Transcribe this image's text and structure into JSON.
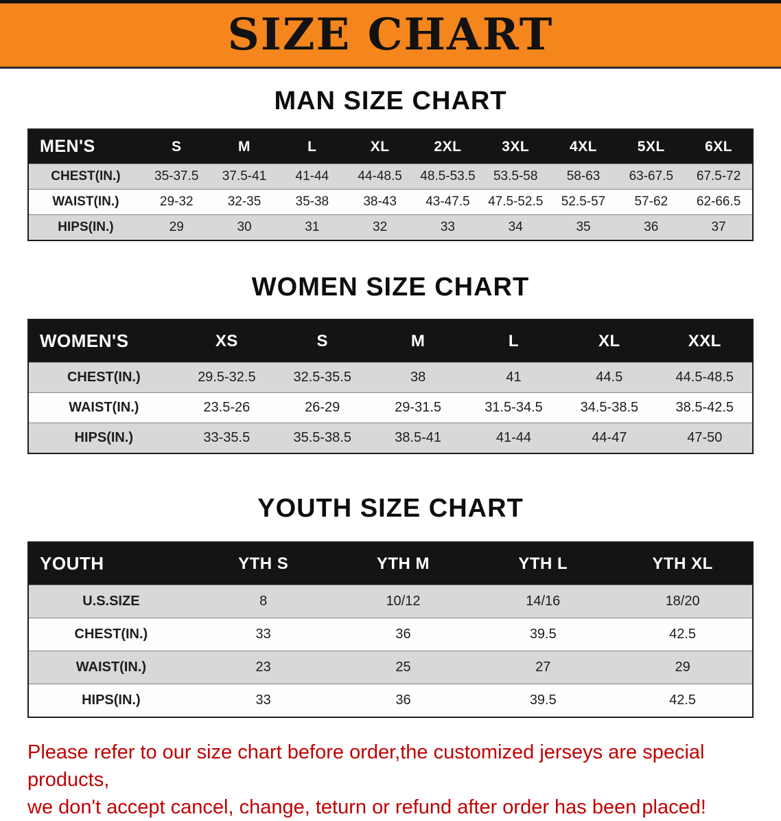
{
  "banner": {
    "title": "SIZE CHART"
  },
  "colors": {
    "banner_bg": "#f5851d",
    "table_header_bg": "#141414",
    "row_alt_gray": "#d8d8d8",
    "notice_red": "#c00202"
  },
  "sections": {
    "men": {
      "heading": "MAN SIZE CHART",
      "table": {
        "header": [
          "MEN'S",
          "S",
          "M",
          "L",
          "XL",
          "2XL",
          "3XL",
          "4XL",
          "5XL",
          "6XL"
        ],
        "rows": [
          {
            "label": "CHEST(IN.)",
            "values": [
              "35-37.5",
              "37.5-41",
              "41-44",
              "44-48.5",
              "48.5-53.5",
              "53.5-58",
              "58-63",
              "63-67.5",
              "67.5-72"
            ]
          },
          {
            "label": "WAIST(IN.)",
            "values": [
              "29-32",
              "32-35",
              "35-38",
              "38-43",
              "43-47.5",
              "47.5-52.5",
              "52.5-57",
              "57-62",
              "62-66.5"
            ]
          },
          {
            "label": "HIPS(IN.)",
            "values": [
              "29",
              "30",
              "31",
              "32",
              "33",
              "34",
              "35",
              "36",
              "37"
            ]
          }
        ]
      }
    },
    "women": {
      "heading": "WOMEN SIZE CHART",
      "table": {
        "header": [
          "WOMEN'S",
          "XS",
          "S",
          "M",
          "L",
          "XL",
          "XXL"
        ],
        "rows": [
          {
            "label": "CHEST(IN.)",
            "values": [
              "29.5-32.5",
              "32.5-35.5",
              "38",
              "41",
              "44.5",
              "44.5-48.5"
            ]
          },
          {
            "label": "WAIST(IN.)",
            "values": [
              "23.5-26",
              "26-29",
              "29-31.5",
              "31.5-34.5",
              "34.5-38.5",
              "38.5-42.5"
            ]
          },
          {
            "label": "HIPS(IN.)",
            "values": [
              "33-35.5",
              "35.5-38.5",
              "38.5-41",
              "41-44",
              "44-47",
              "47-50"
            ]
          }
        ]
      }
    },
    "youth": {
      "heading": "YOUTH SIZE CHART",
      "table": {
        "header": [
          "YOUTH",
          "YTH S",
          "YTH M",
          "YTH L",
          "YTH XL"
        ],
        "rows": [
          {
            "label": "U.S.SIZE",
            "values": [
              "8",
              "10/12",
              "14/16",
              "18/20"
            ]
          },
          {
            "label": "CHEST(IN.)",
            "values": [
              "33",
              "36",
              "39.5",
              "42.5"
            ]
          },
          {
            "label": "WAIST(IN.)",
            "values": [
              "23",
              "25",
              "27",
              "29"
            ]
          },
          {
            "label": "HIPS(IN.)",
            "values": [
              "33",
              "36",
              "39.5",
              "42.5"
            ]
          }
        ]
      }
    }
  },
  "notice": {
    "line1": "Please refer to our size chart before order,the customized jerseys are special products,",
    "line2": "we don't accept cancel, change, teturn or refund after order has been placed!"
  }
}
